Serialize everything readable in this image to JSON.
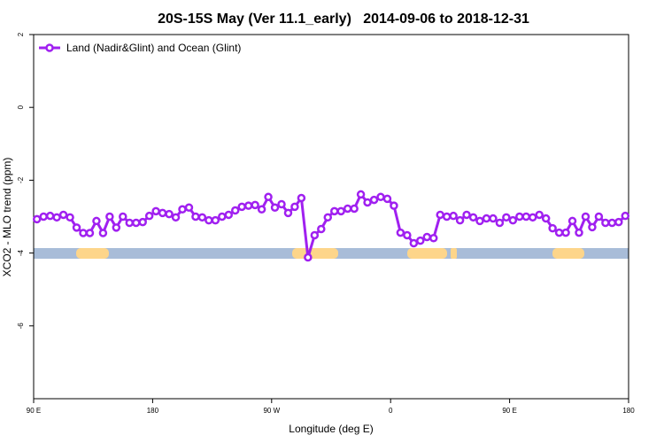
{
  "chart_data": {
    "type": "line",
    "title": "20S-15S May (Ver 11.1_early)   2014-09-06 to 2018-12-31",
    "x_label": "Longitude (deg E)",
    "y_label": "XCO2 - MLO trend (ppm)",
    "xlim": [
      90,
      540
    ],
    "ylim": [
      -8,
      2
    ],
    "xticks": [
      {
        "value": 90,
        "label": "90 E"
      },
      180,
      {
        "value": 270,
        "label": "90 W"
      },
      {
        "value": 360,
        "label": "0"
      },
      {
        "value": 450,
        "label": "90 E"
      },
      {
        "value": 540,
        "label": "180"
      }
    ],
    "yticks": [
      2,
      0,
      -2,
      -4,
      -6
    ],
    "legend": "top-left",
    "x": [
      92.5,
      97.5,
      102.5,
      107.5,
      112.5,
      117.5,
      122.5,
      127.5,
      132.5,
      137.5,
      142.5,
      147.5,
      152.5,
      157.5,
      162.5,
      167.5,
      172.5,
      177.5,
      182.5,
      187.5,
      192.5,
      197.5,
      202.5,
      207.5,
      212.5,
      217.5,
      222.5,
      227.5,
      232.5,
      237.5,
      242.5,
      247.5,
      252.5,
      257.5,
      262.5,
      267.5,
      272.5,
      277.5,
      282.5,
      287.5,
      292.5,
      297.5,
      302.5,
      307.5,
      312.5,
      317.5,
      322.5,
      327.5,
      332.5,
      337.5,
      342.5,
      347.5,
      352.5,
      357.5,
      362.5,
      367.5,
      372.5,
      377.5,
      382.5,
      387.5,
      392.5,
      397.5,
      402.5,
      407.5,
      412.5,
      417.5,
      422.5,
      427.5,
      432.5,
      437.5,
      442.5,
      447.5,
      452.5,
      457.5,
      462.5,
      467.5,
      472.5,
      477.5,
      482.5,
      487.5,
      492.5,
      497.5,
      502.5,
      507.5,
      512.5,
      517.5,
      522.5,
      527.5,
      532.5,
      537.5
    ],
    "series": [
      {
        "name": "Land (Nadir&Glint) and Ocean (Glint)",
        "color": "#a020f0",
        "values": [
          -3.07,
          -3.0,
          -2.98,
          -3.02,
          -2.95,
          -3.02,
          -3.3,
          -3.45,
          -3.45,
          -3.12,
          -3.45,
          -3.0,
          -3.3,
          -3.0,
          -3.17,
          -3.17,
          -3.15,
          -2.98,
          -2.85,
          -2.9,
          -2.93,
          -3.02,
          -2.8,
          -2.75,
          -3.0,
          -3.02,
          -3.1,
          -3.1,
          -3.0,
          -2.95,
          -2.83,
          -2.73,
          -2.7,
          -2.68,
          -2.8,
          -2.46,
          -2.75,
          -2.66,
          -2.9,
          -2.73,
          -2.49,
          -4.12,
          -3.51,
          -3.34,
          -3.02,
          -2.85,
          -2.85,
          -2.78,
          -2.78,
          -2.39,
          -2.61,
          -2.54,
          -2.46,
          -2.51,
          -2.7,
          -3.44,
          -3.51,
          -3.73,
          -3.66,
          -3.56,
          -3.59,
          -2.95,
          -3.0,
          -2.98,
          -3.1,
          -2.95,
          -3.02,
          -3.12,
          -3.05,
          -3.05,
          -3.17,
          -3.02,
          -3.1,
          -3.0,
          -3.0,
          -3.02,
          -2.95,
          -3.05,
          -3.32,
          -3.44,
          -3.44,
          -3.12,
          -3.44,
          -3.0,
          -3.29,
          -3.0,
          -3.17,
          -3.17,
          -3.15,
          -2.98
        ]
      }
    ]
  }
}
